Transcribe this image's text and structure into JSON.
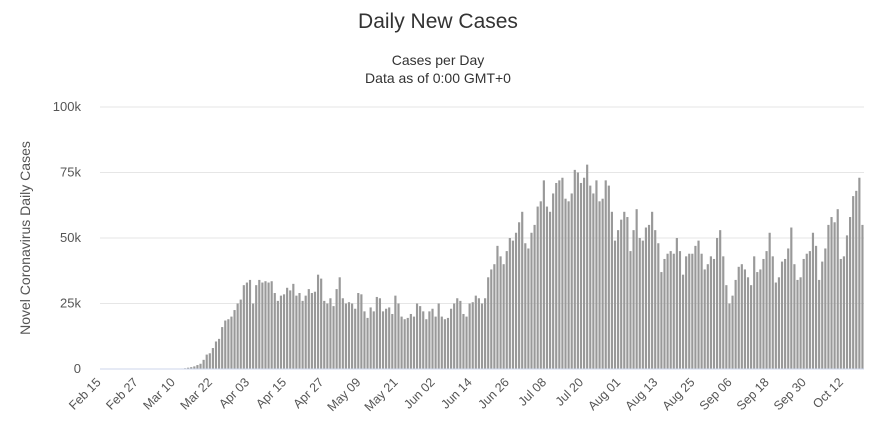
{
  "chart_data": {
    "type": "bar",
    "title": "Daily New Cases",
    "subtitle_lines": [
      "Cases per Day",
      "Data as of 0:00 GMT+0"
    ],
    "ylabel": "Novel Coronavirus Daily Cases",
    "xlabel": "",
    "ylim": [
      0,
      100000
    ],
    "y_ticks": [
      {
        "value": 0,
        "label": "0"
      },
      {
        "value": 25000,
        "label": "25k"
      },
      {
        "value": 50000,
        "label": "50k"
      },
      {
        "value": 75000,
        "label": "75k"
      },
      {
        "value": 100000,
        "label": "100k"
      }
    ],
    "x_tick_labels": [
      {
        "index": 0,
        "label": "Feb 15"
      },
      {
        "index": 12,
        "label": "Feb 27"
      },
      {
        "index": 24,
        "label": "Mar 10"
      },
      {
        "index": 36,
        "label": "Mar 22"
      },
      {
        "index": 48,
        "label": "Apr 03"
      },
      {
        "index": 60,
        "label": "Apr 15"
      },
      {
        "index": 72,
        "label": "Apr 27"
      },
      {
        "index": 84,
        "label": "May 09"
      },
      {
        "index": 96,
        "label": "May 21"
      },
      {
        "index": 108,
        "label": "Jun 02"
      },
      {
        "index": 120,
        "label": "Jun 14"
      },
      {
        "index": 132,
        "label": "Jun 26"
      },
      {
        "index": 144,
        "label": "Jul 08"
      },
      {
        "index": 156,
        "label": "Jul 20"
      },
      {
        "index": 168,
        "label": "Aug 01"
      },
      {
        "index": 180,
        "label": "Aug 13"
      },
      {
        "index": 192,
        "label": "Aug 25"
      },
      {
        "index": 204,
        "label": "Sep 06"
      },
      {
        "index": 216,
        "label": "Sep 18"
      },
      {
        "index": 228,
        "label": "Sep 30"
      },
      {
        "index": 240,
        "label": "Oct 12"
      }
    ],
    "series": [
      {
        "color": "#999999",
        "values": [
          0,
          0,
          0,
          0,
          0,
          0,
          0,
          0,
          0,
          0,
          0,
          0,
          0,
          0,
          0,
          0,
          0,
          0,
          0,
          0,
          0,
          0,
          0,
          0,
          0,
          100,
          200,
          300,
          500,
          700,
          1000,
          1500,
          2000,
          3500,
          5500,
          6000,
          8000,
          10500,
          11500,
          16000,
          18500,
          19000,
          20000,
          22500,
          25000,
          26500,
          32000,
          33000,
          34000,
          25000,
          32000,
          34000,
          33000,
          33500,
          33000,
          33500,
          29000,
          26000,
          28000,
          28500,
          31000,
          30000,
          32500,
          28000,
          29000,
          26000,
          28000,
          30500,
          29000,
          29500,
          36000,
          34500,
          26000,
          25000,
          27000,
          24000,
          30500,
          35000,
          27000,
          25000,
          25500,
          25000,
          23000,
          29000,
          28500,
          22000,
          19500,
          23500,
          22000,
          27500,
          27000,
          22000,
          23000,
          23500,
          21000,
          28000,
          25000,
          20000,
          19000,
          19500,
          21000,
          20000,
          25000,
          24000,
          22000,
          19000,
          22000,
          23000,
          20000,
          25000,
          20000,
          19000,
          19500,
          23000,
          25000,
          27000,
          26000,
          21000,
          20000,
          25000,
          25500,
          28000,
          27000,
          25000,
          27000,
          35000,
          38000,
          40000,
          47000,
          43000,
          40000,
          45000,
          50000,
          49000,
          52000,
          56000,
          60000,
          48000,
          46000,
          52000,
          55000,
          62000,
          64000,
          72000,
          62000,
          60000,
          67000,
          71000,
          72000,
          73000,
          65000,
          64000,
          67000,
          76000,
          75000,
          71000,
          73000,
          78000,
          70000,
          67000,
          72000,
          64000,
          65000,
          72000,
          70000,
          60000,
          49000,
          53000,
          57000,
          60000,
          58000,
          45000,
          53000,
          61000,
          50000,
          49000,
          54000,
          55000,
          60000,
          53000,
          48000,
          37000,
          42000,
          44000,
          45000,
          44000,
          50000,
          45000,
          36000,
          43000,
          44000,
          44000,
          47000,
          49000,
          44000,
          38000,
          40000,
          43000,
          42000,
          50000,
          53000,
          43000,
          32000,
          25000,
          28000,
          34000,
          39000,
          40000,
          38000,
          35000,
          32000,
          43000,
          37000,
          38000,
          42000,
          45000,
          52000,
          43000,
          33000,
          35000,
          41000,
          42000,
          46000,
          54000,
          40000,
          34000,
          35000,
          42000,
          44000,
          45000,
          52000,
          47000,
          34000,
          41000,
          46000,
          55000,
          58000,
          56000,
          61000,
          42000,
          43000,
          51000,
          58000,
          66000,
          68000,
          73000,
          55000
        ]
      }
    ]
  }
}
